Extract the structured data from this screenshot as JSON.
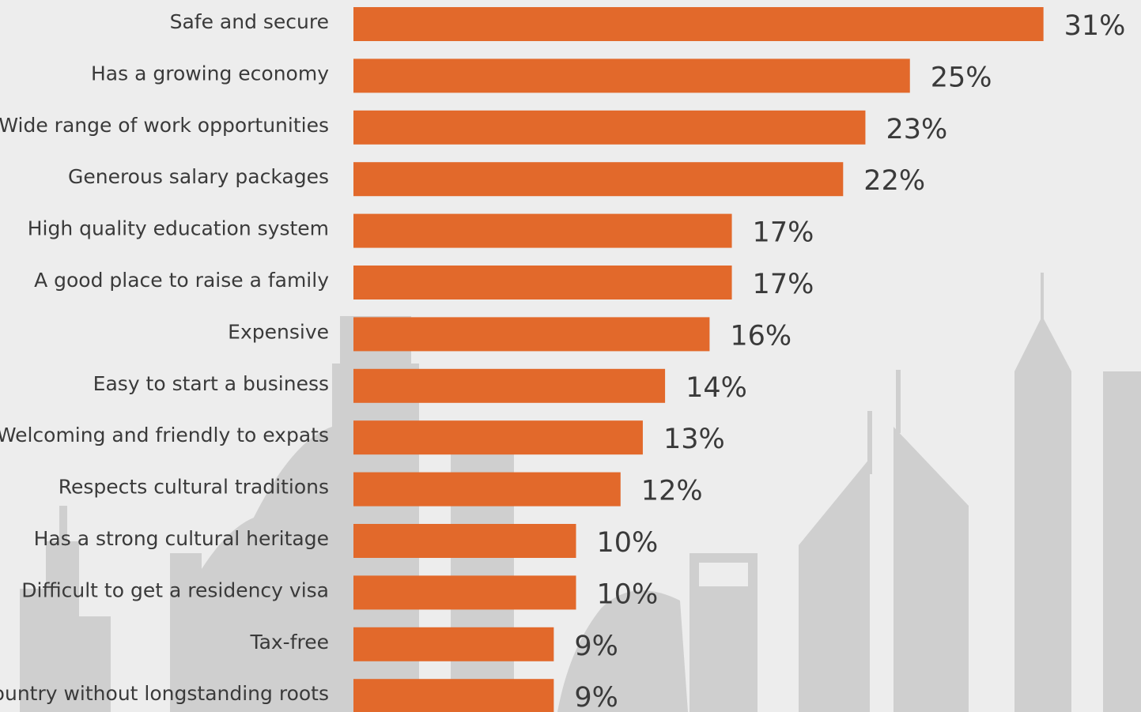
{
  "colors": {
    "bar": "#e2692b",
    "background": "#ededed",
    "skyline": "#cfcfcf",
    "text": "#3a3a3a"
  },
  "chart_data": {
    "type": "bar",
    "orientation": "horizontal",
    "title": "",
    "xlabel": "",
    "ylabel": "",
    "xlim": [
      0,
      31
    ],
    "grid": false,
    "categories": [
      "Safe and secure",
      "Has a growing economy",
      "Wide range of work opportunities",
      "Generous salary packages",
      "High quality education system",
      "A good place to raise a family",
      "Expensive",
      "Easy to start a business",
      "Welcoming and friendly to expats",
      "Respects cultural traditions",
      "Has a strong cultural heritage",
      "Difficult to get a residency visa",
      "Tax-free",
      "country without longstanding roots"
    ],
    "values": [
      31,
      25,
      23,
      22,
      17,
      17,
      16,
      14,
      13,
      12,
      10,
      10,
      9,
      9
    ],
    "value_labels": [
      "31%",
      "25%",
      "23%",
      "22%",
      "17%",
      "17%",
      "16%",
      "14%",
      "13%",
      "12%",
      "10%",
      "10%",
      "9%",
      "9%"
    ]
  }
}
